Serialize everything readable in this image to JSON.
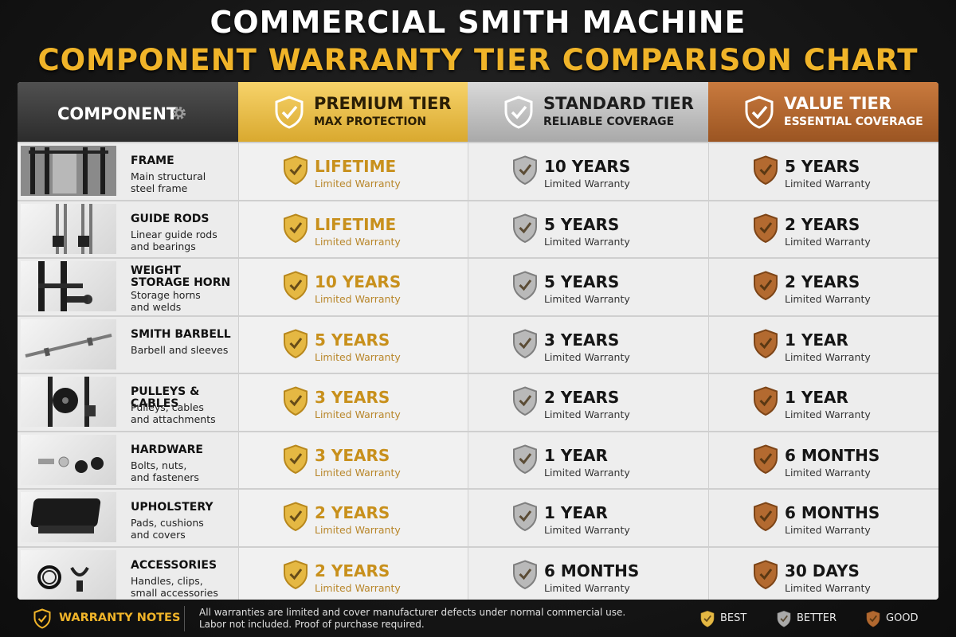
{
  "title": "COMMERCIAL SMITH MACHINE",
  "subtitle": "COMPONENT WARRANTY TIER COMPARISON CHART",
  "header": {
    "component_label": "COMPONENT",
    "tiers": [
      {
        "name": "PREMIUM TIER",
        "sub": "MAX PROTECTION",
        "color": "#e5b843"
      },
      {
        "name": "STANDARD TIER",
        "sub": "RELIABLE COVERAGE",
        "color": "#bdbdbd"
      },
      {
        "name": "VALUE TIER",
        "sub": "ESSENTIAL COVERAGE",
        "color": "#b1682f"
      }
    ]
  },
  "rows": [
    {
      "name": "FRAME",
      "desc": "Main structural\nsteel frame",
      "icon": "frame-thumbnail",
      "premium": "LIFETIME",
      "standard": "10 YEARS",
      "value": "5 YEARS"
    },
    {
      "name": "GUIDE RODS",
      "desc": "Linear guide rods\nand bearings",
      "icon": "guide-rods-thumbnail",
      "premium": "LIFETIME",
      "standard": "5 YEARS",
      "value": "2 YEARS"
    },
    {
      "name": "WEIGHT STORAGE HORN",
      "desc": "Storage horns\nand welds",
      "icon": "weight-horn-thumbnail",
      "premium": "10 YEARS",
      "standard": "5 YEARS",
      "value": "2 YEARS"
    },
    {
      "name": "SMITH BARBELL",
      "desc": "Barbell and sleeves",
      "icon": "barbell-thumbnail",
      "premium": "5 YEARS",
      "standard": "3 YEARS",
      "value": "1 YEAR"
    },
    {
      "name": "PULLEYS & CABLES",
      "desc": "Pulleys, cables\nand attachments",
      "icon": "pulley-thumbnail",
      "premium": "3 YEARS",
      "standard": "2 YEARS",
      "value": "1 YEAR"
    },
    {
      "name": "HARDWARE",
      "desc": "Bolts, nuts,\nand fasteners",
      "icon": "hardware-thumbnail",
      "premium": "3 YEARS",
      "standard": "1 YEAR",
      "value": "6 MONTHS"
    },
    {
      "name": "UPHOLSTERY",
      "desc": "Pads, cushions\nand covers",
      "icon": "upholstery-thumbnail",
      "premium": "2 YEARS",
      "standard": "1 YEAR",
      "value": "6 MONTHS"
    },
    {
      "name": "ACCESSORIES",
      "desc": "Handles, clips,\nsmall accessories",
      "icon": "accessories-thumbnail",
      "premium": "2 YEARS",
      "standard": "6 MONTHS",
      "value": "30 DAYS"
    }
  ],
  "warranty_sub": "Limited Warranty",
  "notes": {
    "title": "WARRANTY NOTES",
    "text": "All warranties are limited and cover manufacturer defects under normal commercial use.\nLabor not included. Proof of purchase required."
  },
  "legend": [
    {
      "label": "BEST",
      "color": "#e5b843"
    },
    {
      "label": "BETTER",
      "color": "#a9a9a9"
    },
    {
      "label": "GOOD",
      "color": "#b1682f"
    }
  ],
  "chart_data": {
    "type": "table",
    "title": "COMMERCIAL SMITH MACHINE",
    "subtitle": "COMPONENT WARRANTY TIER COMPARISON CHART",
    "columns": [
      "COMPONENT",
      "PREMIUM TIER",
      "STANDARD TIER",
      "VALUE TIER"
    ],
    "rows": [
      [
        "FRAME",
        "LIFETIME",
        "10 YEARS",
        "5 YEARS"
      ],
      [
        "GUIDE RODS",
        "LIFETIME",
        "5 YEARS",
        "2 YEARS"
      ],
      [
        "WEIGHT STORAGE HORN",
        "10 YEARS",
        "5 YEARS",
        "2 YEARS"
      ],
      [
        "SMITH BARBELL",
        "5 YEARS",
        "3 YEARS",
        "1 YEAR"
      ],
      [
        "PULLEYS & CABLES",
        "3 YEARS",
        "2 YEARS",
        "1 YEAR"
      ],
      [
        "HARDWARE",
        "3 YEARS",
        "1 YEAR",
        "6 MONTHS"
      ],
      [
        "UPHOLSTERY",
        "2 YEARS",
        "1 YEAR",
        "6 MONTHS"
      ],
      [
        "ACCESSORIES",
        "2 YEARS",
        "6 MONTHS",
        "30 DAYS"
      ]
    ]
  }
}
